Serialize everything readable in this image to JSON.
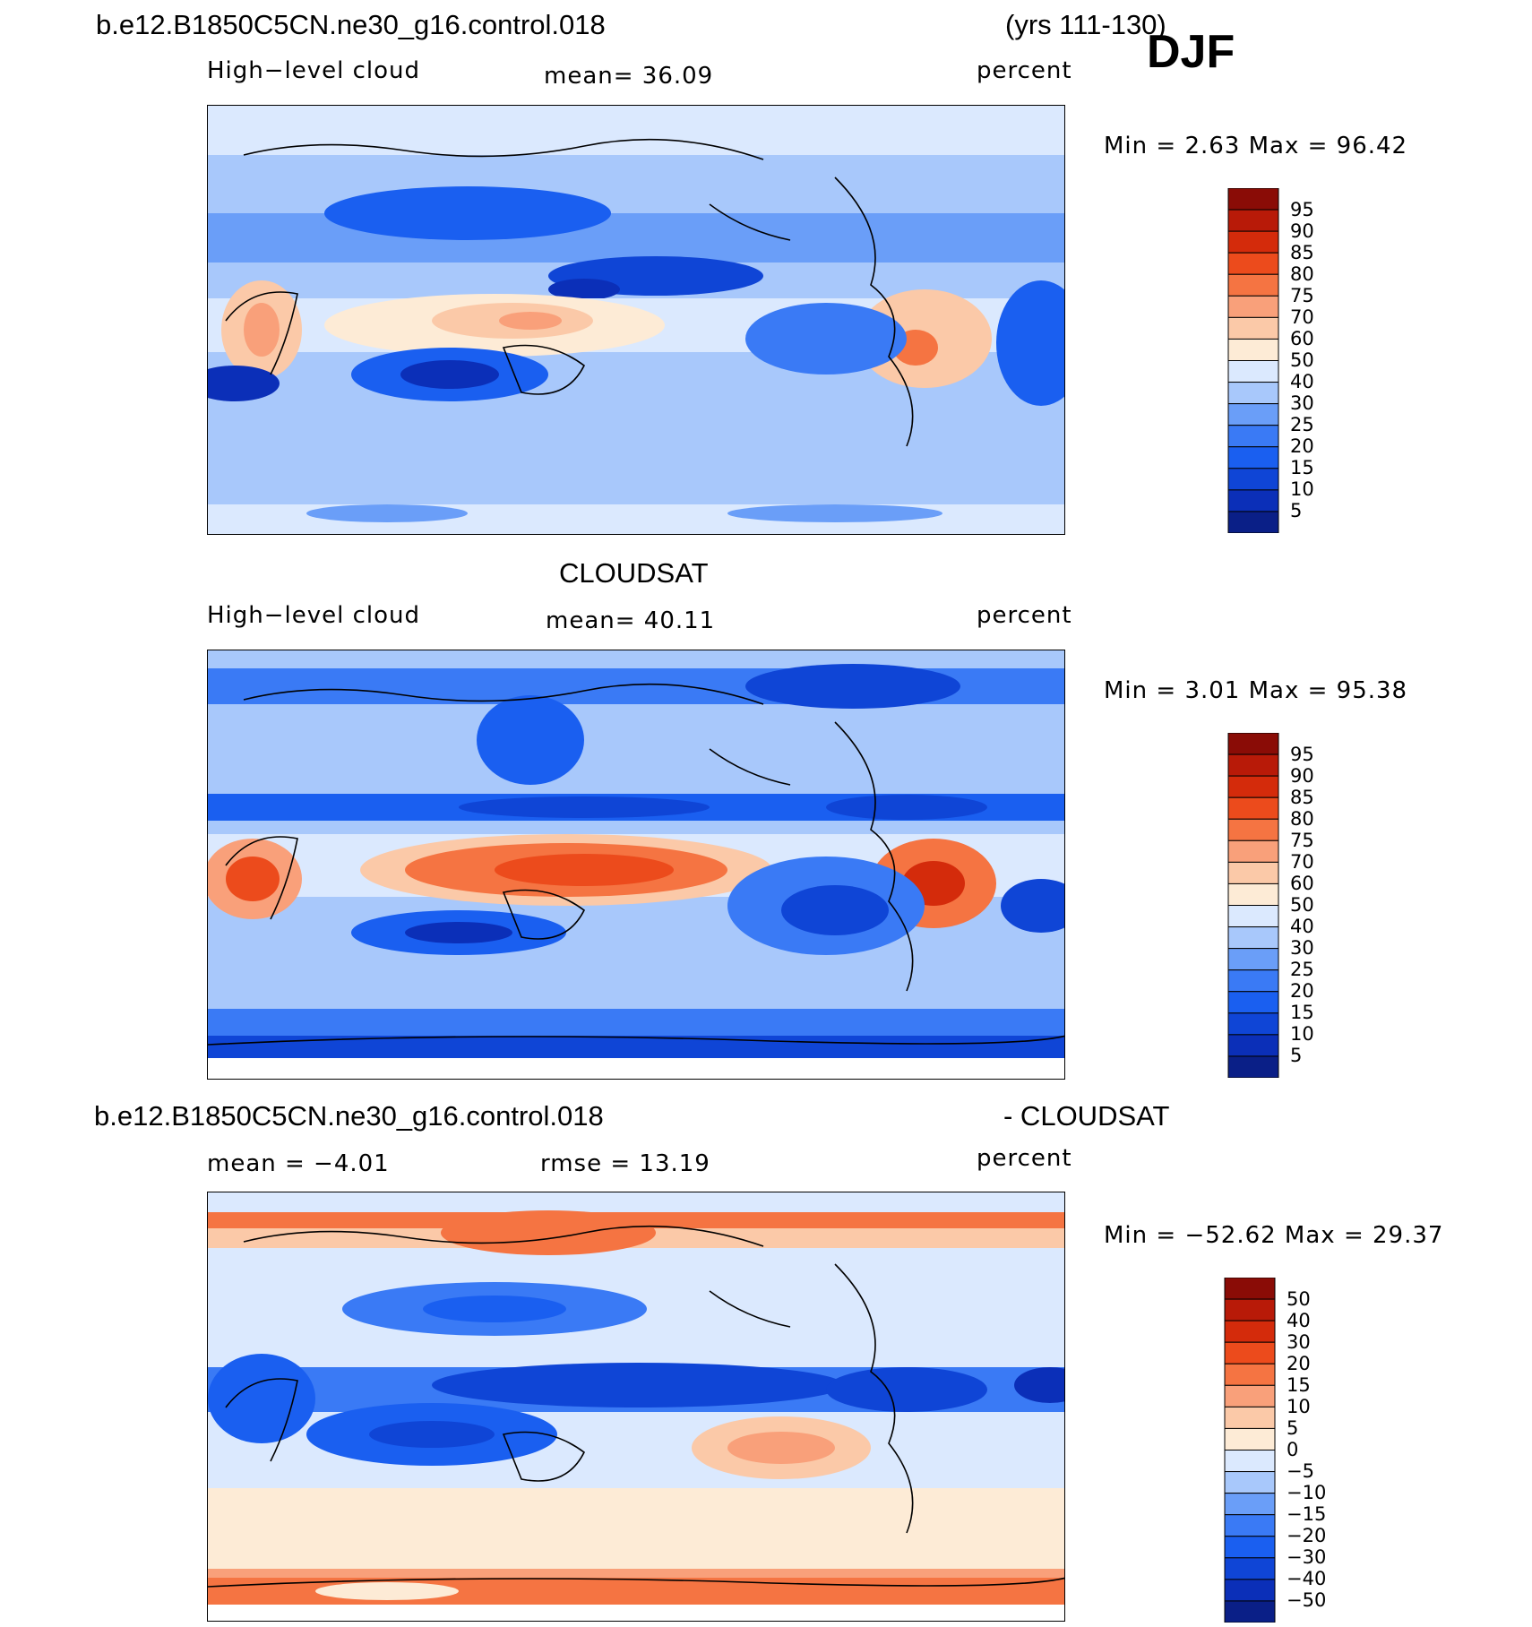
{
  "header": {
    "case_name": "b.e12.B1850C5CN.ne30_g16.control.018",
    "years": "(yrs 111-130)",
    "season": "DJF"
  },
  "panels": [
    {
      "title": "",
      "variable": "High−level cloud",
      "mean_text": "mean=   36.09",
      "units": "percent",
      "minmax_text": "Min  =     2.63  Max  =    96.42",
      "legend_labels": [
        "95",
        "90",
        "85",
        "80",
        "75",
        "70",
        "60",
        "50",
        "40",
        "30",
        "25",
        "20",
        "15",
        "10",
        "5"
      ]
    },
    {
      "title": "CLOUDSAT",
      "variable": "High−level cloud",
      "mean_text": "mean=   40.11",
      "units": "percent",
      "minmax_text": "Min  =     3.01  Max  =    95.38",
      "legend_labels": [
        "95",
        "90",
        "85",
        "80",
        "75",
        "70",
        "60",
        "50",
        "40",
        "30",
        "25",
        "20",
        "15",
        "10",
        "5"
      ]
    },
    {
      "title_left": "b.e12.B1850C5CN.ne30_g16.control.018",
      "title_right": "- CLOUDSAT",
      "mean_text": "mean  =    −4.01",
      "rmse_text": "rmse  =    13.19",
      "units": "percent",
      "minmax_text": "Min  =  −52.62  Max  =    29.37",
      "legend_labels": [
        "50",
        "40",
        "30",
        "20",
        "15",
        "10",
        "5",
        "0",
        "−5",
        "−10",
        "−15",
        "−20",
        "−30",
        "−40",
        "−50"
      ]
    }
  ],
  "colors": {
    "scale": [
      "#0a1f87",
      "#0b2fb8",
      "#0f45d6",
      "#1a5ff0",
      "#3a7af5",
      "#6a9ef8",
      "#a8c8fb",
      "#dbe9fe",
      "#fdebd6",
      "#fbc9a8",
      "#f9a07a",
      "#f57442",
      "#ec4b1c",
      "#d42b0b",
      "#b81a08",
      "#8a0c06"
    ]
  }
}
